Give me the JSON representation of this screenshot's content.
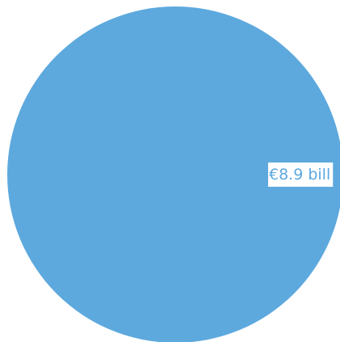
{
  "chart_data": {
    "type": "pie",
    "categories": [
      ""
    ],
    "values": [
      8.9
    ],
    "data_labels": [
      "€8.9 bill"
    ],
    "colors": [
      "#5DA9DE"
    ],
    "label_color": "#5DA9DE",
    "label_background": "#FFFFFF",
    "legend": "none"
  }
}
